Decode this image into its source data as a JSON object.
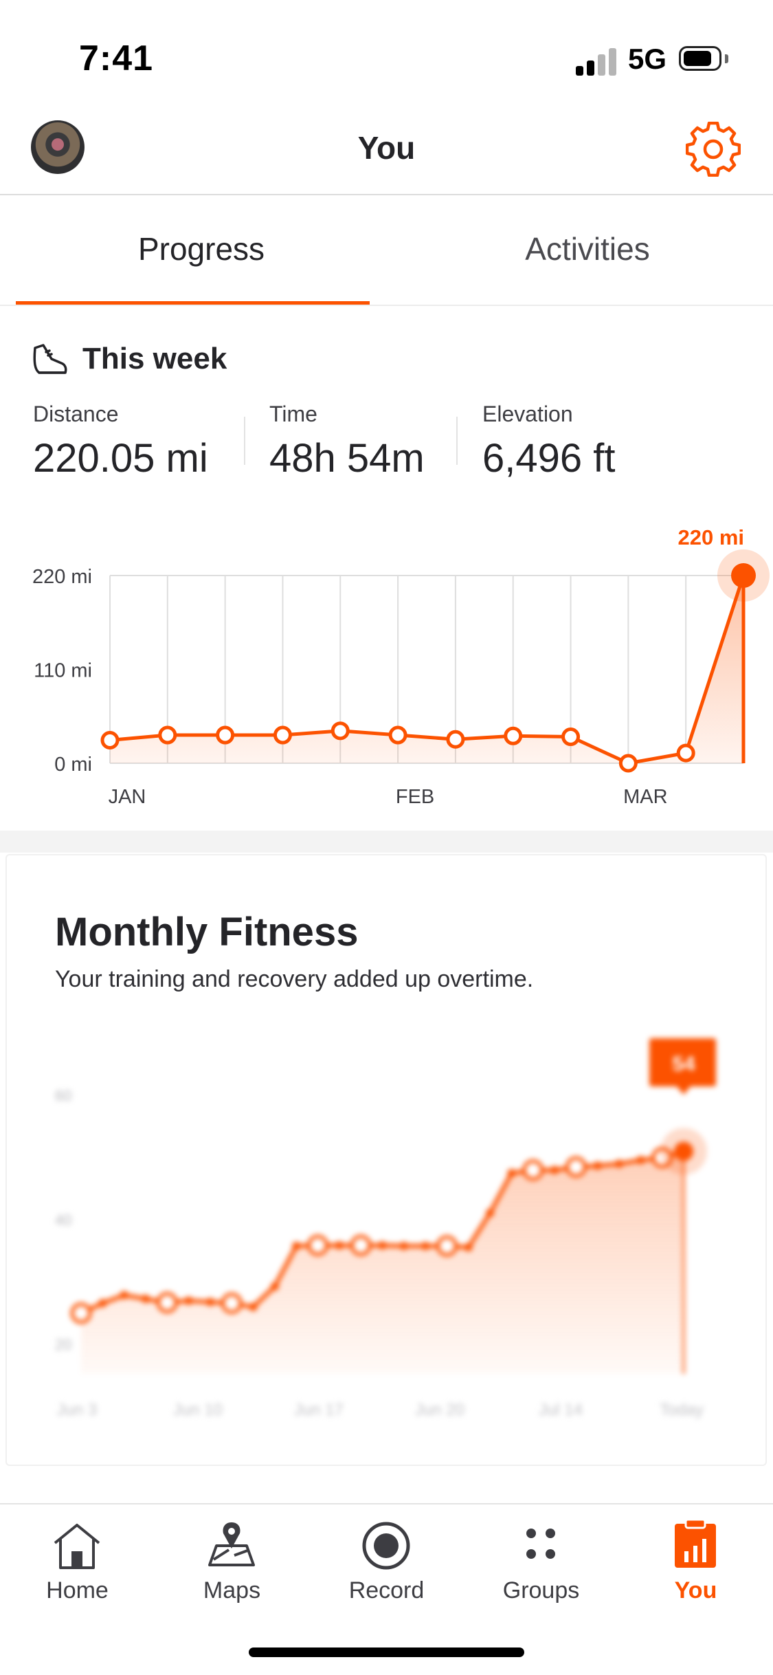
{
  "status": {
    "time": "7:41",
    "network": "5G"
  },
  "header": {
    "title": "You",
    "avatar_icon": "profile-photo",
    "settings_icon": "gear-icon"
  },
  "tabs": [
    {
      "label": "Progress",
      "active": true
    },
    {
      "label": "Activities",
      "active": false
    }
  ],
  "week": {
    "title": "This week",
    "stats": [
      {
        "label": "Distance",
        "value": "220.05 mi"
      },
      {
        "label": "Time",
        "value": "48h 54m"
      },
      {
        "label": "Elevation",
        "value": "6,496 ft"
      }
    ],
    "highlight_label": "220 mi"
  },
  "chart_data": [
    {
      "type": "line",
      "title": "",
      "y_ticks": [
        "0 mi",
        "110 mi",
        "220 mi"
      ],
      "ylim": [
        0,
        220
      ],
      "x_labels": [
        {
          "label": "JAN",
          "week_index": 0
        },
        {
          "label": "FEB",
          "week_index": 5
        },
        {
          "label": "MAR",
          "week_index": 9
        }
      ],
      "values": [
        27,
        33,
        33,
        33,
        38,
        33,
        28,
        32,
        31,
        0,
        12,
        220
      ],
      "grid": true,
      "color": "#fc5200"
    },
    {
      "type": "line",
      "title": "Monthly Fitness",
      "blurred": true,
      "y_ticks": [
        "20",
        "40",
        "60"
      ],
      "ylim": [
        15,
        65
      ],
      "x_labels": [
        "Jun 3",
        "Jun 10",
        "Jun 17",
        "Jun 20",
        "Jul 14",
        "Today"
      ],
      "values": [
        25,
        26.6,
        27.9,
        27.3,
        26.7,
        27.0,
        26.8,
        26.6,
        26.0,
        29.3,
        35.8,
        35.9,
        35.9,
        35.9,
        35.9,
        35.8,
        35.8,
        35.8,
        35.6,
        41.1,
        47.5,
        48.0,
        48.0,
        48.5,
        48.7,
        49.0,
        49.6,
        50.0,
        51.0
      ],
      "badge": "54",
      "color": "#fc5200"
    }
  ],
  "monthly_fitness": {
    "title": "Monthly Fitness",
    "subtitle": "Your training and recovery added up overtime."
  },
  "nav": [
    {
      "label": "Home",
      "icon": "home-icon",
      "active": false
    },
    {
      "label": "Maps",
      "icon": "maps-icon",
      "active": false
    },
    {
      "label": "Record",
      "icon": "record-icon",
      "active": false
    },
    {
      "label": "Groups",
      "icon": "groups-icon",
      "active": false
    },
    {
      "label": "You",
      "icon": "you-icon",
      "active": true
    }
  ]
}
